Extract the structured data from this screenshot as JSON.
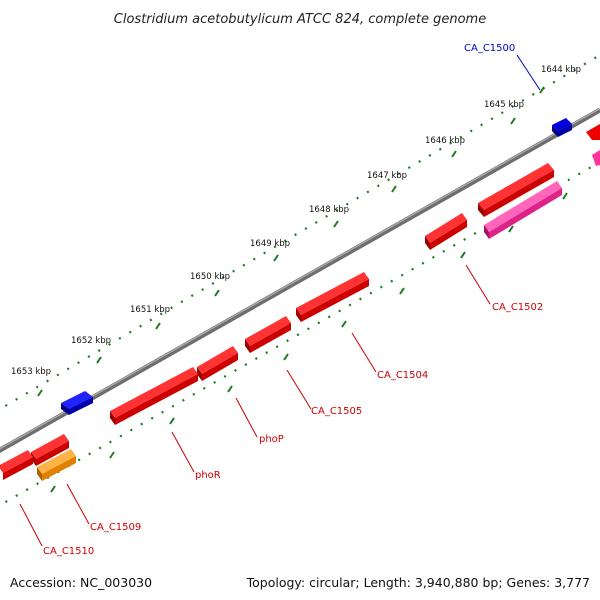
{
  "title": "Clostridium acetobutylicum ATCC 824, complete genome",
  "footer": {
    "accession": "Accession: NC_003030",
    "topology": "Topology: circular; Length: 3,940,880 bp; Genes: 3,777"
  },
  "colors": {
    "backbone": "#8a8a8a",
    "tick": "#1f7a1f",
    "gene_red": "#ee0000",
    "gene_blue": "#0000dd",
    "gene_magenta": "#ff3399",
    "gene_orange": "#ff9900",
    "label_red": "#cc0000",
    "label_blue": "#0000cc"
  },
  "ticks": [
    "1644 kbp",
    "1645 kbp",
    "1646 kbp",
    "1647 kbp",
    "1648 kbp",
    "1649 kbp",
    "1650 kbp",
    "1651 kbp",
    "1652 kbp",
    "1653 kbp"
  ],
  "gene_labels": [
    "CA_C1500",
    "CA_C1502",
    "CA_C1504",
    "CA_C1505",
    "phoP",
    "phoR",
    "CA_C1509",
    "CA_C1510"
  ]
}
